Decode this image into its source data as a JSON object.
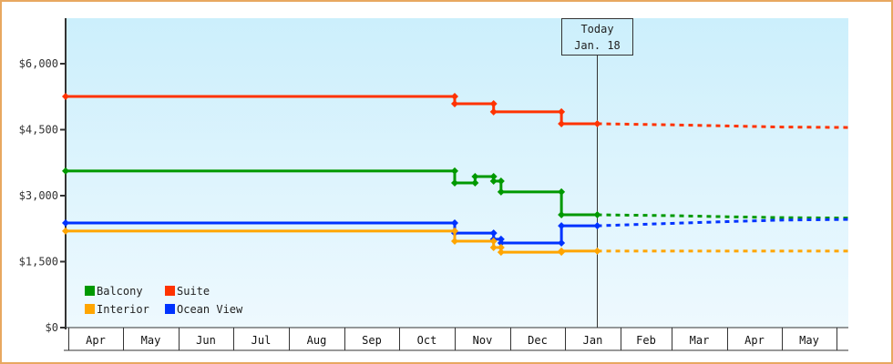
{
  "chart_data": {
    "type": "line",
    "title": "",
    "xlabel": "",
    "ylabel": "",
    "ylim": [
      0,
      7000
    ],
    "y_ticks": [
      {
        "value": 0,
        "label": "$0"
      },
      {
        "value": 1500,
        "label": "$1,500"
      },
      {
        "value": 3000,
        "label": "$3,000"
      },
      {
        "value": 4500,
        "label": "$4,500"
      },
      {
        "value": 6000,
        "label": "$6,000"
      }
    ],
    "x_months": [
      "Apr",
      "May",
      "Jun",
      "Jul",
      "Aug",
      "Sep",
      "Oct",
      "Nov",
      "Dec",
      "Jan",
      "Feb",
      "Mar",
      "Apr",
      "May"
    ],
    "today_marker": {
      "line1": "Today",
      "line2": "Jan. 18"
    },
    "grid": false,
    "legend_position": "bottom-left inside plot",
    "legend": [
      {
        "name": "Balcony",
        "color": "#009900"
      },
      {
        "name": "Suite",
        "color": "#ff3300"
      },
      {
        "name": "Interior",
        "color": "#ffa500"
      },
      {
        "name": "Ocean View",
        "color": "#0033ff"
      }
    ],
    "series": [
      {
        "name": "Suite",
        "color": "#ff3300",
        "style": "step",
        "points": [
          {
            "date": "Apr 1",
            "value": 5255
          },
          {
            "date": "Nov 1",
            "value": 5255
          },
          {
            "date": "Nov 1",
            "value": 5090
          },
          {
            "date": "Nov 22",
            "value": 5090
          },
          {
            "date": "Nov 22",
            "value": 4905
          },
          {
            "date": "Dec 30",
            "value": 4905
          },
          {
            "date": "Dec 30",
            "value": 4635
          },
          {
            "date": "Jan 18",
            "value": 4635
          }
        ],
        "forecast": [
          {
            "date": "Jan 18",
            "value": 4635
          },
          {
            "date": "Mar 1",
            "value": 4610
          },
          {
            "date": "Apr 1",
            "value": 4585
          },
          {
            "date": "May 1",
            "value": 4560
          },
          {
            "date": "Jun 1",
            "value": 4550
          }
        ]
      },
      {
        "name": "Balcony",
        "color": "#009900",
        "style": "step",
        "points": [
          {
            "date": "Apr 1",
            "value": 3560
          },
          {
            "date": "Nov 1",
            "value": 3560
          },
          {
            "date": "Nov 1",
            "value": 3290
          },
          {
            "date": "Nov 12",
            "value": 3290
          },
          {
            "date": "Nov 12",
            "value": 3435
          },
          {
            "date": "Nov 22",
            "value": 3435
          },
          {
            "date": "Nov 22",
            "value": 3330
          },
          {
            "date": "Nov 26",
            "value": 3330
          },
          {
            "date": "Nov 26",
            "value": 3085
          },
          {
            "date": "Dec 30",
            "value": 3085
          },
          {
            "date": "Dec 30",
            "value": 2565
          },
          {
            "date": "Jan 18",
            "value": 2565
          }
        ],
        "forecast": [
          {
            "date": "Jan 18",
            "value": 2565
          },
          {
            "date": "Mar 1",
            "value": 2545
          },
          {
            "date": "Apr 1",
            "value": 2520
          },
          {
            "date": "May 1",
            "value": 2500
          },
          {
            "date": "Jun 1",
            "value": 2490
          }
        ]
      },
      {
        "name": "Ocean View",
        "color": "#0033ff",
        "style": "step",
        "points": [
          {
            "date": "Apr 1",
            "value": 2380
          },
          {
            "date": "Nov 1",
            "value": 2380
          },
          {
            "date": "Nov 1",
            "value": 2150
          },
          {
            "date": "Nov 22",
            "value": 2150
          },
          {
            "date": "Nov 22",
            "value": 2010
          },
          {
            "date": "Nov 26",
            "value": 2010
          },
          {
            "date": "Nov 26",
            "value": 1925
          },
          {
            "date": "Dec 30",
            "value": 1925
          },
          {
            "date": "Dec 30",
            "value": 2315
          },
          {
            "date": "Jan 18",
            "value": 2315
          }
        ],
        "forecast": [
          {
            "date": "Jan 18",
            "value": 2315
          },
          {
            "date": "Mar 1",
            "value": 2370
          },
          {
            "date": "Apr 1",
            "value": 2410
          },
          {
            "date": "May 1",
            "value": 2445
          },
          {
            "date": "Jun 1",
            "value": 2460
          }
        ]
      },
      {
        "name": "Interior",
        "color": "#ffa500",
        "style": "step",
        "points": [
          {
            "date": "Apr 1",
            "value": 2195
          },
          {
            "date": "Nov 1",
            "value": 2195
          },
          {
            "date": "Nov 1",
            "value": 1965
          },
          {
            "date": "Nov 22",
            "value": 1965
          },
          {
            "date": "Nov 22",
            "value": 1820
          },
          {
            "date": "Nov 26",
            "value": 1820
          },
          {
            "date": "Nov 26",
            "value": 1715
          },
          {
            "date": "Dec 30",
            "value": 1715
          },
          {
            "date": "Dec 30",
            "value": 1740
          },
          {
            "date": "Jan 18",
            "value": 1740
          }
        ],
        "forecast": [
          {
            "date": "Jan 18",
            "value": 1740
          },
          {
            "date": "Jun 1",
            "value": 1740
          }
        ]
      }
    ]
  },
  "colors": {
    "frame_border": "#e8a860",
    "plot_bg_top": "#cceffc",
    "plot_bg_bottom": "#eef9fe",
    "axis": "#333333"
  }
}
